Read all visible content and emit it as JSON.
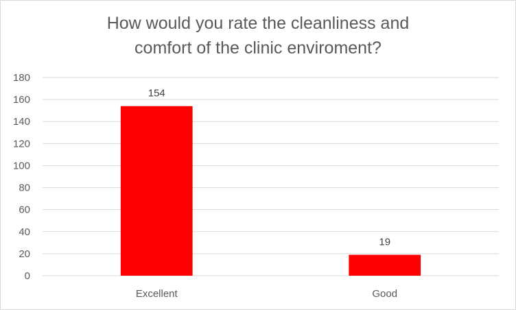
{
  "chart_data": {
    "type": "bar",
    "title_lines": [
      "How would you rate the cleanliness and",
      "comfort of the clinic enviroment?"
    ],
    "categories": [
      "Excellent",
      "Good"
    ],
    "values": [
      154,
      19
    ],
    "data_labels": [
      "154",
      "19"
    ],
    "ylim": [
      0,
      180
    ],
    "yticks": [
      0,
      20,
      40,
      60,
      80,
      100,
      120,
      140,
      160,
      180
    ],
    "ytick_labels": [
      "0",
      "20",
      "40",
      "60",
      "80",
      "100",
      "120",
      "140",
      "160",
      "180"
    ],
    "grid": true,
    "legend": false,
    "bar_color": "#ff0000",
    "grid_color": "#d9d9d9"
  }
}
